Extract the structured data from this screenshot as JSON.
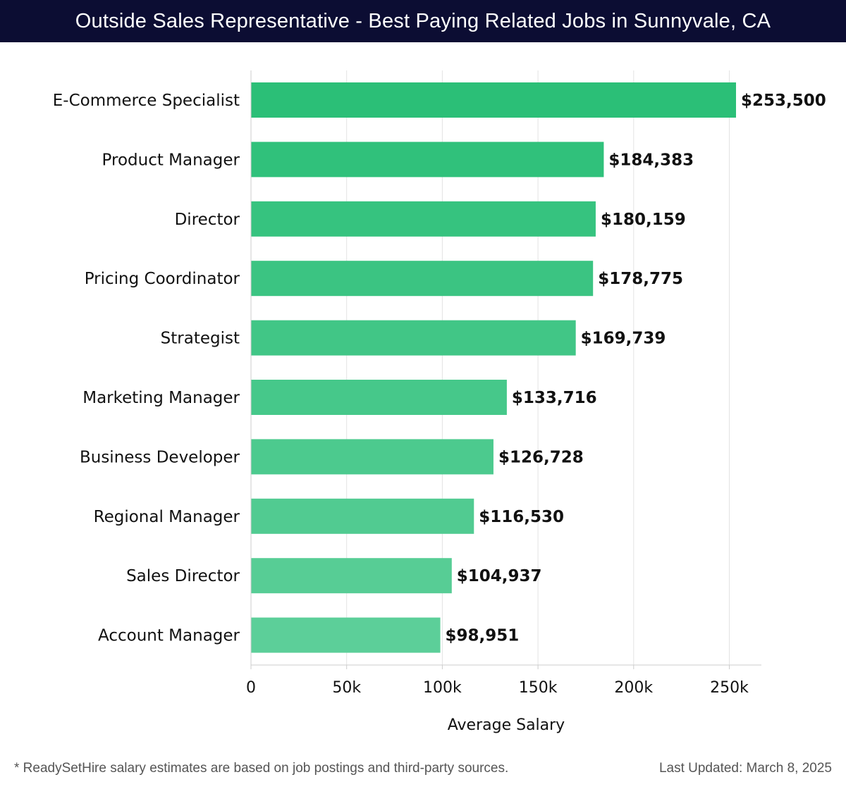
{
  "header": {
    "title": "Outside Sales Representative - Best Paying Related Jobs in Sunnyvale, CA"
  },
  "footer": {
    "note": "* ReadySetHire salary estimates are based on job postings and third-party sources.",
    "updated": "Last Updated: March 8, 2025"
  },
  "chart_data": {
    "type": "bar",
    "orientation": "horizontal",
    "categories": [
      "E-Commerce Specialist",
      "Product Manager",
      "Director",
      "Pricing Coordinator",
      "Strategist",
      "Marketing Manager",
      "Business Developer",
      "Regional Manager",
      "Sales Director",
      "Account Manager"
    ],
    "values": [
      253500,
      184383,
      180159,
      178775,
      169739,
      133716,
      126728,
      116530,
      104937,
      98951
    ],
    "value_labels": [
      "$253,500",
      "$184,383",
      "$180,159",
      "$178,775",
      "$169,739",
      "$133,716",
      "$126,728",
      "$116,530",
      "$104,937",
      "$98,951"
    ],
    "xlabel": "Average Salary",
    "ylabel": "",
    "xlim": [
      0,
      267000
    ],
    "xticks": [
      0,
      50000,
      100000,
      150000,
      200000,
      250000
    ],
    "xtick_labels": [
      "0",
      "50k",
      "100k",
      "150k",
      "200k",
      "250k"
    ],
    "grid": true,
    "colors": {
      "bar_top": "#2bbf77",
      "bar_bottom": "#5ccf99",
      "grid": "#e3e3e3",
      "axis": "#cccccc"
    }
  }
}
